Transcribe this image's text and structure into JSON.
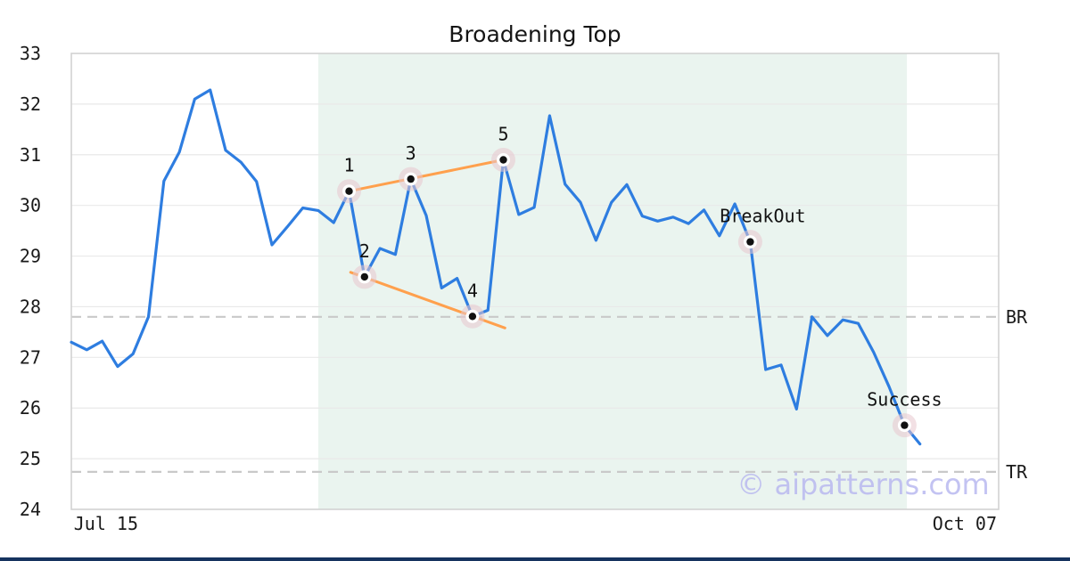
{
  "title": "Broadening Top",
  "watermark": "© aipatterns.com",
  "footer_bar_color": "#16335f",
  "colors": {
    "price_line": "#2e7de0",
    "trendline": "#ffa04d",
    "shade": "#eaf4ef",
    "grid": "#e9e9e9",
    "spine": "#d2d2d2",
    "dashed_level": "#c9c9c9",
    "marker_halo": "#e7c6cd",
    "marker_dot": "#111111",
    "watermark": "#b7b7f0",
    "text": "#1a1a1a"
  },
  "chart_data": {
    "type": "line",
    "title": "Broadening Top",
    "xlabel": "",
    "ylabel": "",
    "ylim": [
      24,
      33
    ],
    "y_ticks": [
      24,
      25,
      26,
      27,
      28,
      29,
      30,
      31,
      32,
      33
    ],
    "grid": "horizontal-only",
    "legend": "none",
    "x_axis_span_points": 60.1,
    "x_ticks": [
      {
        "label": "Jul 15",
        "index": 2.25
      },
      {
        "label": "Oct 07",
        "index": 57.9
      }
    ],
    "series": [
      {
        "name": "price",
        "values": [
          27.3,
          27.15,
          27.32,
          26.82,
          27.07,
          27.8,
          30.48,
          31.05,
          32.1,
          32.28,
          31.09,
          30.85,
          30.47,
          29.22,
          29.58,
          29.95,
          29.9,
          29.66,
          30.28,
          28.59,
          29.15,
          29.03,
          30.52,
          29.8,
          28.37,
          28.56,
          27.81,
          27.93,
          30.9,
          29.82,
          29.96,
          31.77,
          30.42,
          30.06,
          29.31,
          30.06,
          30.41,
          29.79,
          29.69,
          29.77,
          29.64,
          29.91,
          29.4,
          30.03,
          29.28,
          26.76,
          26.85,
          25.98,
          27.8,
          27.43,
          27.74,
          27.67,
          27.1,
          26.42,
          25.66,
          25.29
        ]
      }
    ],
    "pattern_points": [
      {
        "label": "1",
        "index": 18,
        "value": 30.28
      },
      {
        "label": "2",
        "index": 19,
        "value": 28.59
      },
      {
        "label": "3",
        "index": 22,
        "value": 30.52
      },
      {
        "label": "4",
        "index": 26,
        "value": 27.81
      },
      {
        "label": "5",
        "index": 28,
        "value": 30.9
      },
      {
        "label": "BreakOut",
        "index": 44,
        "value": 29.28,
        "label_dx": 14
      },
      {
        "label": "Success",
        "index": 54,
        "value": 25.66
      }
    ],
    "trendlines": [
      {
        "name": "upper",
        "x1_index": 18,
        "y1": 30.28,
        "x2_index": 28,
        "y2": 30.9
      },
      {
        "name": "lower",
        "x1_index": 18.1,
        "y1": 28.68,
        "x2_index": 28.1,
        "y2": 27.58
      }
    ],
    "horizontal_lines": [
      {
        "label": "BR",
        "value": 27.8
      },
      {
        "label": "TR",
        "value": 24.74
      }
    ],
    "shaded_region": {
      "from_index": 16,
      "to_index": 54.15
    }
  }
}
